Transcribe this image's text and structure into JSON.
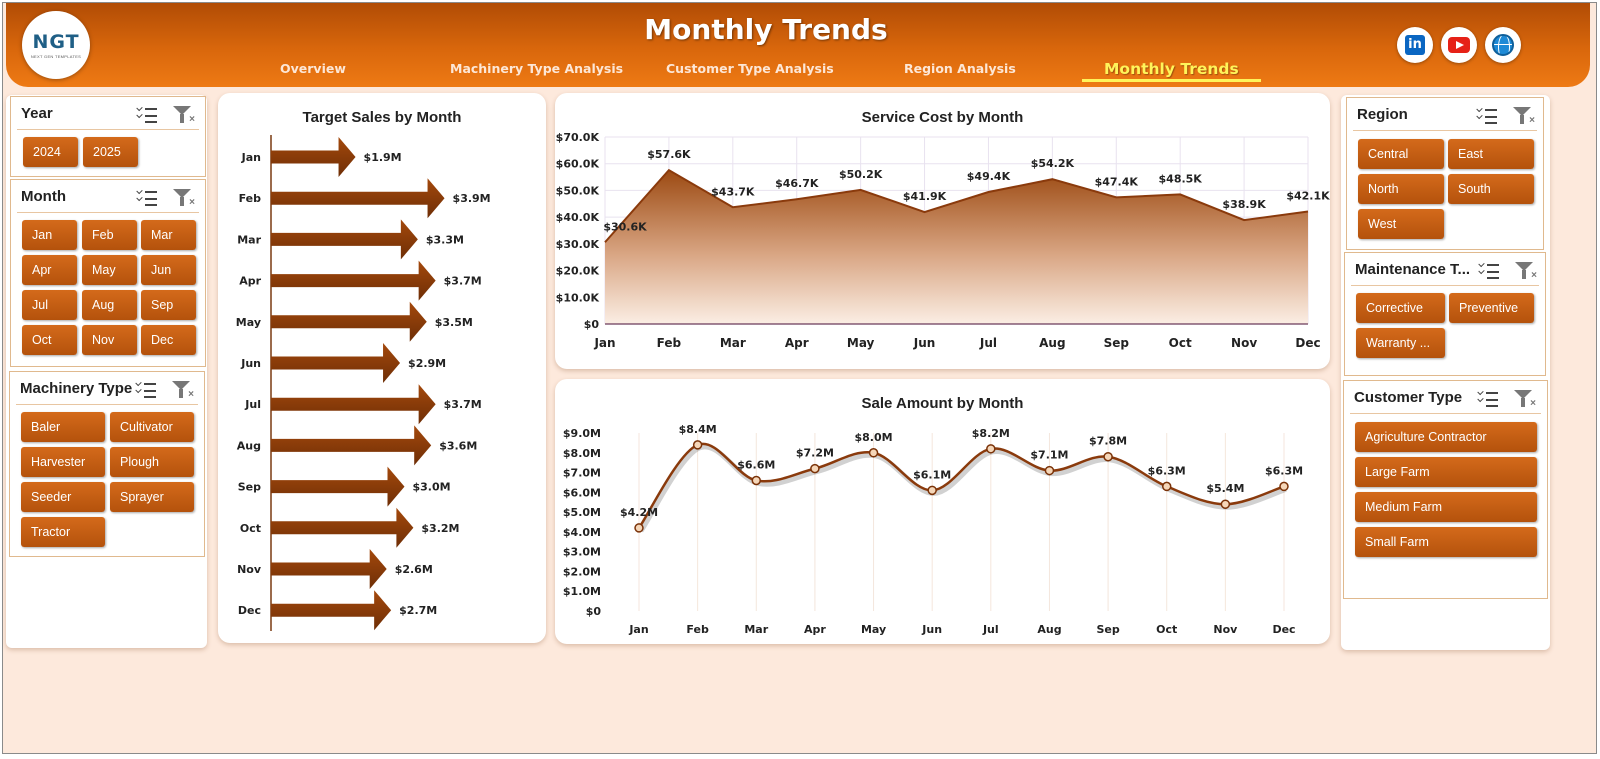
{
  "header": {
    "title": "Monthly Trends",
    "logo": {
      "text": "NGT",
      "subtitle": "NEXT GEN TEMPLATES"
    },
    "nav": [
      "Overview",
      "Machinery Type Analysis",
      "Customer Type Analysis",
      "Region Analysis",
      "Monthly Trends"
    ],
    "active_nav": "Monthly Trends",
    "social_icons": [
      "linkedin-icon",
      "youtube-icon",
      "globe-icon"
    ]
  },
  "slicers": {
    "year": {
      "title": "Year",
      "items": [
        "2024",
        "2025"
      ]
    },
    "month": {
      "title": "Month",
      "items": [
        "Jan",
        "Feb",
        "Mar",
        "Apr",
        "May",
        "Jun",
        "Jul",
        "Aug",
        "Sep",
        "Oct",
        "Nov",
        "Dec"
      ]
    },
    "machinery_type": {
      "title": "Machinery Type",
      "items": [
        "Baler",
        "Cultivator",
        "Harvester",
        "Plough",
        "Seeder",
        "Sprayer",
        "Tractor"
      ]
    },
    "region": {
      "title": "Region",
      "items": [
        "Central",
        "East",
        "North",
        "South",
        "West"
      ]
    },
    "maintenance_type": {
      "title": "Maintenance T...",
      "items": [
        "Corrective",
        "Preventive",
        "Warranty ..."
      ]
    },
    "customer_type": {
      "title": "Customer Type",
      "items": [
        "Agriculture Contractor",
        "Large Farm",
        "Medium Farm",
        "Small Farm"
      ]
    }
  },
  "colors": {
    "accent": "#b4520c",
    "header": "#d9670c",
    "background": "#fde9dc",
    "active_tab": "#fff45a"
  },
  "chart_data": [
    {
      "type": "bar",
      "title": "Target Sales by Month",
      "categories": [
        "Jan",
        "Feb",
        "Mar",
        "Apr",
        "May",
        "Jun",
        "Jul",
        "Aug",
        "Sep",
        "Oct",
        "Nov",
        "Dec"
      ],
      "values": [
        1.9,
        3.9,
        3.3,
        3.7,
        3.5,
        2.9,
        3.7,
        3.6,
        3.0,
        3.2,
        2.6,
        2.7
      ],
      "labels": [
        "$1.9M",
        "$3.9M",
        "$3.3M",
        "$3.7M",
        "$3.5M",
        "$2.9M",
        "$3.7M",
        "$3.6M",
        "$3.0M",
        "$3.2M",
        "$2.6M",
        "$2.7M"
      ],
      "orientation": "horizontal",
      "unit": "$M"
    },
    {
      "type": "area",
      "title": "Service Cost by Month",
      "categories": [
        "Jan",
        "Feb",
        "Mar",
        "Apr",
        "May",
        "Jun",
        "Jul",
        "Aug",
        "Sep",
        "Oct",
        "Nov",
        "Dec"
      ],
      "values": [
        30.6,
        57.6,
        43.7,
        46.7,
        50.2,
        41.9,
        49.4,
        54.2,
        47.4,
        48.5,
        38.9,
        42.1
      ],
      "labels": [
        "$30.6K",
        "$57.6K",
        "$43.7K",
        "$46.7K",
        "$50.2K",
        "$41.9K",
        "$49.4K",
        "$54.2K",
        "$47.4K",
        "$48.5K",
        "$38.9K",
        "$42.1K"
      ],
      "ylim": [
        0,
        70
      ],
      "yticks": [
        "$0",
        "$10.0K",
        "$20.0K",
        "$30.0K",
        "$40.0K",
        "$50.0K",
        "$60.0K",
        "$70.0K"
      ],
      "grid": true,
      "unit": "$K"
    },
    {
      "type": "line",
      "title": "Sale Amount by Month",
      "categories": [
        "Jan",
        "Feb",
        "Mar",
        "Apr",
        "May",
        "Jun",
        "Jul",
        "Aug",
        "Sep",
        "Oct",
        "Nov",
        "Dec"
      ],
      "values": [
        4.2,
        8.4,
        6.6,
        7.2,
        8.0,
        6.1,
        8.2,
        7.1,
        7.8,
        6.3,
        5.4,
        6.3
      ],
      "labels": [
        "$4.2M",
        "$8.4M",
        "$6.6M",
        "$7.2M",
        "$8.0M",
        "$6.1M",
        "$8.2M",
        "$7.1M",
        "$7.8M",
        "$6.3M",
        "$5.4M",
        "$6.3M"
      ],
      "ylim": [
        0,
        9
      ],
      "yticks": [
        "$0",
        "$1.0M",
        "$2.0M",
        "$3.0M",
        "$4.0M",
        "$5.0M",
        "$6.0M",
        "$7.0M",
        "$8.0M",
        "$9.0M"
      ],
      "grid": true,
      "unit": "$M"
    }
  ]
}
